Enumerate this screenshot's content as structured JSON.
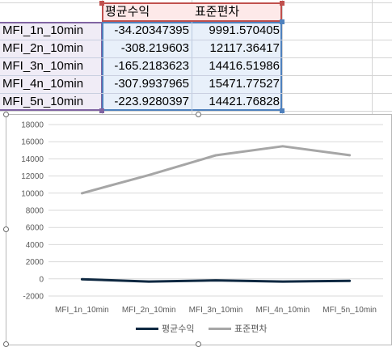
{
  "table": {
    "headers": [
      "평균수익",
      "표준편차"
    ],
    "rows": [
      {
        "label": "MFI_1n_10min",
        "avg": "-34.20347395",
        "std": "9991.570405"
      },
      {
        "label": "MFI_2n_10min",
        "avg": "-308.219603",
        "std": "12117.36417"
      },
      {
        "label": "MFI_3n_10min",
        "avg": "-165.2183623",
        "std": "14416.51986"
      },
      {
        "label": "MFI_4n_10min",
        "avg": "-307.9937965",
        "std": "15471.77527"
      },
      {
        "label": "MFI_5n_10min",
        "avg": "-223.9280397",
        "std": "14421.76828"
      }
    ]
  },
  "colors": {
    "header_border": "#c0504d",
    "header_fill": "#fde9e9",
    "label_border": "#8064a2",
    "label_fill": "#f0ecf6",
    "value_border": "#4f81bd",
    "value_fill": "#e8f0fa",
    "series_avg": "#0e2841",
    "series_std": "#a6a6a6"
  },
  "chart_data": {
    "type": "line",
    "categories": [
      "MFI_1n_10min",
      "MFI_2n_10min",
      "MFI_3n_10min",
      "MFI_4n_10min",
      "MFI_5n_10min"
    ],
    "series": [
      {
        "name": "평균수익",
        "values": [
          -34.20347395,
          -308.219603,
          -165.2183623,
          -307.9937965,
          -223.9280397
        ]
      },
      {
        "name": "표준편차",
        "values": [
          9991.570405,
          12117.36417,
          14416.51986,
          15471.77527,
          14421.76828
        ]
      }
    ],
    "ylim": [
      -2000,
      18000
    ],
    "yticks": [
      "-2000",
      "0",
      "2000",
      "4000",
      "6000",
      "8000",
      "10000",
      "12000",
      "14000",
      "16000",
      "18000"
    ],
    "grid": true,
    "legend": "bottom"
  }
}
